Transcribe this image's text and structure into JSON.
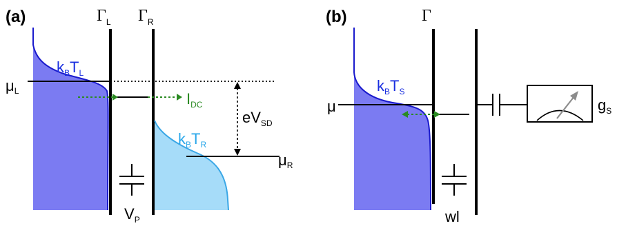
{
  "colors": {
    "left_fill": "#7b7bf2",
    "left_edge": "#1a1acc",
    "right_fill": "#a6dcf9",
    "right_edge": "#3aa7e6",
    "blue_text": "#1a2fe0",
    "cyan_text": "#2aa7ea",
    "green": "#2a8a22",
    "black": "#000000",
    "gray_needle": "#8c8c8c"
  },
  "panel_a": {
    "label": "(a)",
    "gamma_left": "Γ",
    "gamma_left_sub": "L",
    "gamma_right": "Γ",
    "gamma_right_sub": "R",
    "mu_left": "μ",
    "mu_left_sub": "L",
    "mu_right": "μ",
    "mu_right_sub": "R",
    "temp_left_k": "k",
    "temp_left_k_sub": "B",
    "temp_left_t": "T",
    "temp_left_t_sub": "L",
    "temp_right_k": "k",
    "temp_right_k_sub": "B",
    "temp_right_t": "T",
    "temp_right_t_sub": "R",
    "current": "I",
    "current_sub": "DC",
    "bias": "eV",
    "bias_sub": "SD",
    "gate": "V",
    "gate_sub": "P"
  },
  "panel_b": {
    "label": "(b)",
    "gamma": "Γ",
    "mu": "μ",
    "temp_k": "k",
    "temp_k_sub": "B",
    "temp_t": "T",
    "temp_t_sub": "S",
    "gate": "wl",
    "meter": "g",
    "meter_sub": "S"
  }
}
